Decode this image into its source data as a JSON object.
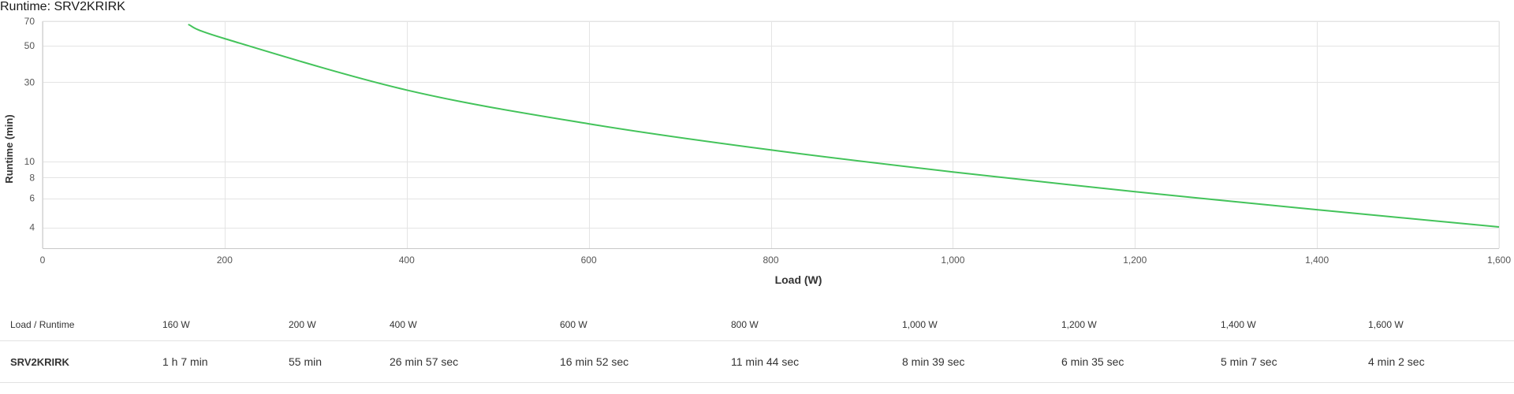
{
  "page": {
    "title": "Runtime: SRV2KRIRK"
  },
  "colors": {
    "series": "#43c35a",
    "grid": "#e4e4e4",
    "axis": "#c8c8c8"
  },
  "chart_data": {
    "type": "line",
    "title": "Runtime: SRV2KRIRK",
    "xlabel": "Load (W)",
    "ylabel": "Runtime (min)",
    "xlim": [
      0,
      1600
    ],
    "ylim": [
      3,
      70
    ],
    "y_scale": "log",
    "grid": true,
    "x_ticks": [
      {
        "value": 0,
        "label": "0"
      },
      {
        "value": 200,
        "label": "200"
      },
      {
        "value": 400,
        "label": "400"
      },
      {
        "value": 600,
        "label": "600"
      },
      {
        "value": 800,
        "label": "800"
      },
      {
        "value": 1000,
        "label": "1,000"
      },
      {
        "value": 1200,
        "label": "1,200"
      },
      {
        "value": 1400,
        "label": "1,400"
      },
      {
        "value": 1600,
        "label": "1,600"
      }
    ],
    "y_ticks": [
      {
        "value": 70,
        "label": "70"
      },
      {
        "value": 50,
        "label": "50"
      },
      {
        "value": 30,
        "label": "30"
      },
      {
        "value": 10,
        "label": "10"
      },
      {
        "value": 8,
        "label": "8"
      },
      {
        "value": 6,
        "label": "6"
      },
      {
        "value": 4,
        "label": "4"
      }
    ],
    "series": [
      {
        "name": "SRV2KRIRK",
        "x": [
          160,
          200,
          400,
          600,
          800,
          1000,
          1200,
          1400,
          1600
        ],
        "y": [
          67,
          55,
          26.95,
          16.87,
          11.73,
          8.65,
          6.58,
          5.12,
          4.03
        ]
      }
    ]
  },
  "runtime_table": {
    "header_label": "Load / Runtime",
    "loads": [
      "160 W",
      "200 W",
      "400 W",
      "600 W",
      "800 W",
      "1,000 W",
      "1,200 W",
      "1,400 W",
      "1,600 W"
    ],
    "row_label": "SRV2KRIRK",
    "runtimes": [
      "1 h 7 min",
      "55 min",
      "26 min 57 sec",
      "16 min 52 sec",
      "11 min 44 sec",
      "8 min 39 sec",
      "6 min 35 sec",
      "5 min 7 sec",
      "4 min 2 sec"
    ]
  }
}
